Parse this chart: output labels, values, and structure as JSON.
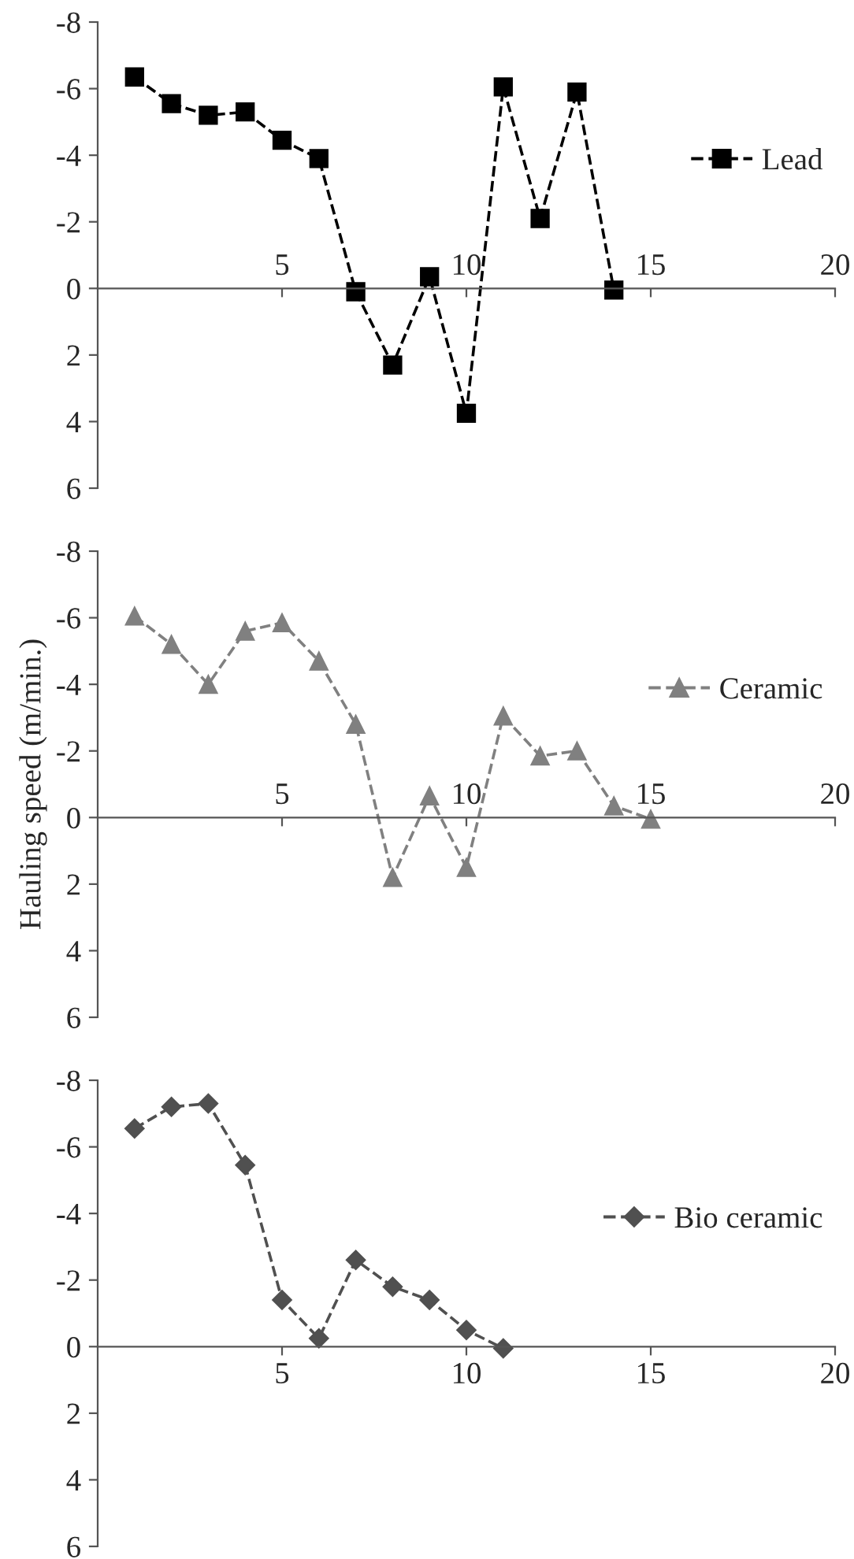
{
  "chart_data": [
    {
      "type": "line",
      "x": [
        1,
        2,
        3,
        4,
        5,
        6,
        7,
        8,
        9,
        10,
        11,
        12,
        13,
        14
      ],
      "xlim": [
        0,
        20
      ],
      "xticks": [
        5,
        10,
        15,
        20
      ],
      "ylim": [
        6,
        -8
      ],
      "yticks": [
        -8,
        -6,
        -4,
        -2,
        0,
        2,
        4,
        6
      ],
      "marker": "square",
      "line_style": "dashed",
      "legend": "right",
      "series": [
        {
          "name": "Lead",
          "color": "#000000",
          "values": [
            -6.35,
            -5.55,
            -5.2,
            -5.3,
            -4.45,
            -3.9,
            0.1,
            2.3,
            -0.35,
            3.75,
            -6.05,
            -2.1,
            -5.9,
            0.05
          ]
        }
      ]
    },
    {
      "type": "line",
      "x": [
        1,
        2,
        3,
        4,
        5,
        6,
        7,
        8,
        9,
        10,
        11,
        12,
        13,
        14,
        15
      ],
      "xlim": [
        0,
        20
      ],
      "xticks": [
        5,
        10,
        15,
        20
      ],
      "ylim": [
        6,
        -8
      ],
      "yticks": [
        -8,
        -6,
        -4,
        -2,
        0,
        2,
        4,
        6
      ],
      "ylabel": "Hauling speed (m/min.)",
      "marker": "triangle",
      "line_style": "dashed",
      "legend": "right",
      "series": [
        {
          "name": "Ceramic",
          "color": "#808080",
          "values": [
            -6.05,
            -5.2,
            -4.0,
            -5.6,
            -5.85,
            -4.7,
            -2.8,
            1.8,
            -0.65,
            1.5,
            -3.05,
            -1.85,
            -2.0,
            -0.35,
            0.05
          ]
        }
      ]
    },
    {
      "type": "line",
      "x": [
        1,
        2,
        3,
        4,
        5,
        6,
        7,
        8,
        9,
        10,
        11
      ],
      "xlim": [
        0,
        20
      ],
      "xticks": [
        5,
        10,
        15,
        20
      ],
      "ylim": [
        6,
        -8
      ],
      "yticks": [
        -8,
        -6,
        -4,
        -2,
        0,
        2,
        4,
        6
      ],
      "marker": "diamond",
      "line_style": "dashed",
      "legend": "right",
      "series": [
        {
          "name": "Bio ceramic",
          "color": "#505050",
          "values": [
            -6.55,
            -7.2,
            -7.3,
            -5.45,
            -1.4,
            -0.25,
            -2.6,
            -1.8,
            -1.4,
            -0.5,
            0.05
          ]
        }
      ]
    }
  ]
}
